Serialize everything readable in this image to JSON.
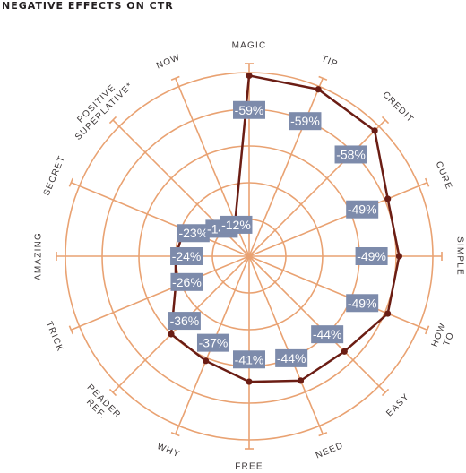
{
  "title": "NEGATIVE EFFECTS ON CTR",
  "chart_data": {
    "type": "radar",
    "title": "NEGATIVE EFFECTS ON CTR",
    "unit": "%",
    "colors": {
      "grid": "#e9a272",
      "line": "#6b1d14",
      "label_box": "#7d8bab",
      "label_text": "#ffffff"
    },
    "categories": [
      {
        "name": "MAGIC",
        "value": -59
      },
      {
        "name": "TIP",
        "value": -59
      },
      {
        "name": "CREDIT",
        "value": -58
      },
      {
        "name": "CURE",
        "value": -49
      },
      {
        "name": "SIMPLE",
        "value": -49
      },
      {
        "name": "HOW TO",
        "value": -49
      },
      {
        "name": "EASY",
        "value": -44
      },
      {
        "name": "NEED",
        "value": -44
      },
      {
        "name": "FREE",
        "value": -41
      },
      {
        "name": "WHY",
        "value": -37
      },
      {
        "name": "READER REF.",
        "value": -36
      },
      {
        "name": "TRICK",
        "value": -26
      },
      {
        "name": "AMAZING",
        "value": -24
      },
      {
        "name": "SECRET",
        "value": -23
      },
      {
        "name": "POSITIVE SUPERLATIVE*",
        "value": -14
      },
      {
        "name": "NOW",
        "value": -12
      }
    ],
    "rlim": [
      0,
      -60
    ]
  }
}
